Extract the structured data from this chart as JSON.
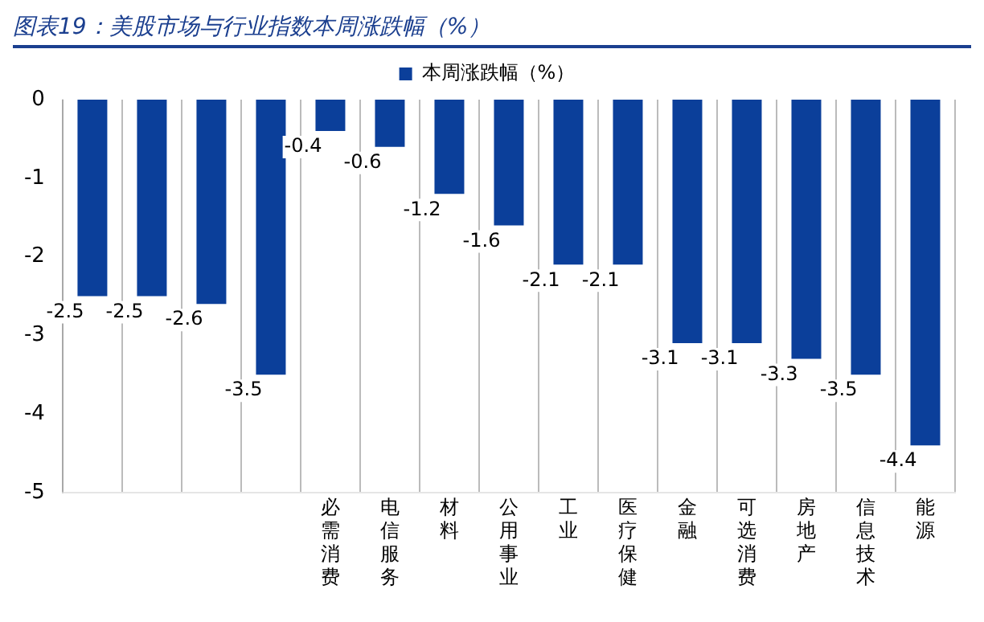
{
  "chart_data": {
    "type": "bar",
    "title": "图表19：美股市场与行业指数本周涨跌幅（%）",
    "categories": [
      null,
      null,
      null,
      null,
      "必需消费",
      "电信服务",
      "材料",
      "公用事业",
      "工业",
      "医疗保健",
      "金融",
      "可选消费",
      "房地产",
      "信息技术",
      "能源"
    ],
    "series": [
      {
        "name": "本周涨跌幅（%）",
        "color": "#0b3f9a",
        "values": [
          -2.5,
          -2.5,
          -2.6,
          -3.5,
          -0.4,
          -0.6,
          -1.2,
          -1.6,
          -2.1,
          -2.1,
          -3.1,
          -3.1,
          -3.3,
          -3.5,
          -4.4
        ]
      }
    ],
    "ylim": [
      -5,
      0
    ],
    "yticks": [
      -5,
      -4,
      -3,
      -2,
      -1,
      0
    ],
    "grid": "x",
    "legend": "top",
    "data_labels": true
  }
}
